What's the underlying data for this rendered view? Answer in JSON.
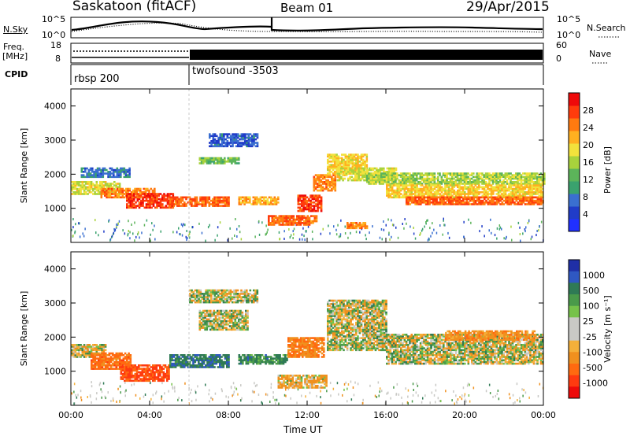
{
  "header": {
    "station": "Saskatoon (fitACF)",
    "beam": "Beam 01",
    "date": "29/Apr/2015"
  },
  "strip_panels": {
    "noise_left_label": "N.Sky",
    "noise_right_label": "N.Search",
    "noise_ticks": [
      "10^5",
      "10^0"
    ],
    "freq_left_label_line1": "Freq.",
    "freq_left_label_line2": "[MHz]",
    "freq_ticks": [
      "18",
      "8"
    ],
    "nave_ticks": [
      "60",
      "0"
    ],
    "nave_label": "Nave",
    "cpid_label": "CPID",
    "cpid_segments": [
      {
        "name": "rbsp 200",
        "start_hour": 0
      },
      {
        "name": "twofsound -3503",
        "start_hour": 6
      }
    ]
  },
  "x_axis": {
    "label": "Time UT",
    "ticks": [
      "00:00",
      "04:00",
      "08:00",
      "12:00",
      "16:00",
      "20:00",
      "00:00"
    ]
  },
  "colors": {
    "power_scale": [
      "#2030ff",
      "#203cc8",
      "#3a6fd0",
      "#3aa26e",
      "#5cb45a",
      "#a8d23c",
      "#f2e23c",
      "#ffb020",
      "#ff7a10",
      "#ff3c0c",
      "#ee0a0a"
    ],
    "velocity_scale": [
      "#1f2fa6",
      "#2f58c2",
      "#2f7a55",
      "#4a9a4a",
      "#76c24a",
      "#c9c9c5",
      "#c9c9c5",
      "#f4b03a",
      "#f0901e",
      "#ff6a10",
      "#ff3a10",
      "#ee0a0a"
    ],
    "ground_scatter": "#b4b4b0"
  },
  "chart_data": [
    {
      "type": "heatmap",
      "title": "Power",
      "xlabel": "",
      "ylabel": "Slant Range [km]",
      "xlim": [
        0,
        24
      ],
      "ylim": [
        0,
        4500
      ],
      "y_ticks": [
        1000,
        2000,
        3000,
        4000
      ],
      "colorbar": {
        "label": "Power [dB]",
        "ticks": [
          4,
          8,
          12,
          16,
          20,
          24,
          28
        ],
        "range": [
          0,
          32
        ]
      },
      "regions": [
        {
          "x": [
            0.0,
            2.5
          ],
          "y": [
            1400,
            1800
          ],
          "value": 18
        },
        {
          "x": [
            0.5,
            3.0
          ],
          "y": [
            1900,
            2200
          ],
          "value": 8
        },
        {
          "x": [
            1.5,
            4.2
          ],
          "y": [
            1300,
            1600
          ],
          "value": 24
        },
        {
          "x": [
            2.8,
            5.2
          ],
          "y": [
            1000,
            1450
          ],
          "value": 28
        },
        {
          "x": [
            5.0,
            8.0
          ],
          "y": [
            1050,
            1350
          ],
          "value": 26
        },
        {
          "x": [
            6.5,
            8.5
          ],
          "y": [
            2300,
            2500
          ],
          "value": 14
        },
        {
          "x": [
            7.0,
            9.5
          ],
          "y": [
            2800,
            3200
          ],
          "value": 6
        },
        {
          "x": [
            8.5,
            10.5
          ],
          "y": [
            1100,
            1350
          ],
          "value": 22
        },
        {
          "x": [
            10.0,
            12.5
          ],
          "y": [
            500,
            800
          ],
          "value": 26
        },
        {
          "x": [
            11.5,
            12.7
          ],
          "y": [
            900,
            1400
          ],
          "value": 28
        },
        {
          "x": [
            12.3,
            13.4
          ],
          "y": [
            1500,
            2000
          ],
          "value": 24
        },
        {
          "x": [
            13.0,
            15.0
          ],
          "y": [
            2000,
            2600
          ],
          "value": 20
        },
        {
          "x": [
            13.5,
            16.5
          ],
          "y": [
            1800,
            2200
          ],
          "value": 18
        },
        {
          "x": [
            14.0,
            15.0
          ],
          "y": [
            400,
            600
          ],
          "value": 24
        },
        {
          "x": [
            15.0,
            24.0
          ],
          "y": [
            1700,
            2050
          ],
          "value": 16
        },
        {
          "x": [
            16.0,
            24.0
          ],
          "y": [
            1300,
            1700
          ],
          "value": 20
        },
        {
          "x": [
            17.0,
            24.0
          ],
          "y": [
            1100,
            1350
          ],
          "value": 26
        }
      ]
    },
    {
      "type": "heatmap",
      "title": "Velocity",
      "xlabel": "Time UT",
      "ylabel": "Slant Range [km]",
      "xlim": [
        0,
        24
      ],
      "ylim": [
        0,
        4500
      ],
      "y_ticks": [
        1000,
        2000,
        3000,
        4000
      ],
      "colorbar": {
        "label": "Velocity [m s⁻¹]",
        "ticks": [
          "1000",
          "500",
          "100",
          "25",
          "-25",
          "-100",
          "-500",
          "-1000"
        ]
      },
      "regions": [
        {
          "x": [
            0.0,
            1.8
          ],
          "y": [
            1400,
            1800
          ],
          "value": 0
        },
        {
          "x": [
            1.0,
            3.0
          ],
          "y": [
            1050,
            1550
          ],
          "value": -400
        },
        {
          "x": [
            2.5,
            5.0
          ],
          "y": [
            700,
            1200
          ],
          "value": -600
        },
        {
          "x": [
            5.0,
            8.0
          ],
          "y": [
            1100,
            1500
          ],
          "value": 300
        },
        {
          "x": [
            6.5,
            9.0
          ],
          "y": [
            2200,
            2800
          ],
          "value": 0
        },
        {
          "x": [
            6.0,
            9.5
          ],
          "y": [
            3000,
            3400
          ],
          "value": 0
        },
        {
          "x": [
            8.5,
            11.0
          ],
          "y": [
            1200,
            1500
          ],
          "value": 200
        },
        {
          "x": [
            11.0,
            12.8
          ],
          "y": [
            1400,
            2000
          ],
          "value": -300
        },
        {
          "x": [
            10.5,
            13.0
          ],
          "y": [
            500,
            900
          ],
          "value": -100
        },
        {
          "x": [
            13.0,
            16.0
          ],
          "y": [
            1600,
            3100
          ],
          "value": 0
        },
        {
          "x": [
            16.0,
            24.0
          ],
          "y": [
            1200,
            2100
          ],
          "value": 0
        },
        {
          "x": [
            19.0,
            23.5
          ],
          "y": [
            1900,
            2200
          ],
          "value": -200
        }
      ]
    }
  ]
}
